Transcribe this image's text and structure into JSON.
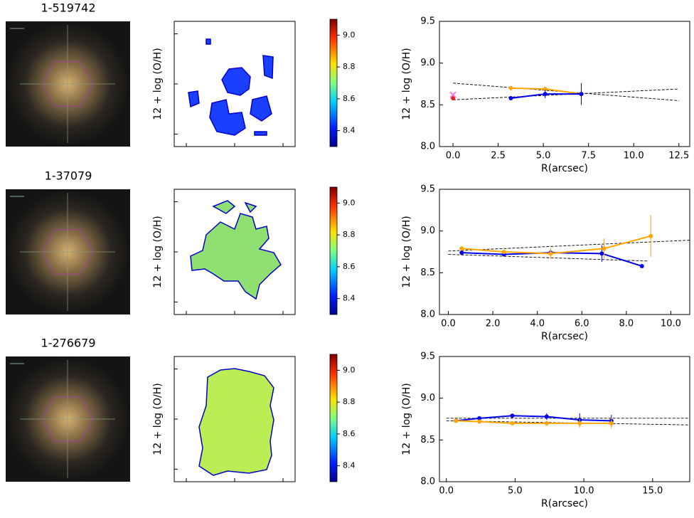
{
  "chart_data": [
    {
      "type": "image",
      "title": "1-519742"
    },
    {
      "type": "map",
      "ylabel": "12 + log (O/H)",
      "colorbar_lim": [
        8.3,
        9.1
      ],
      "colorbar_ticks": [
        8.4,
        8.6,
        8.8,
        {
          "value": 9,
          "label": "9.0"
        }
      ]
    },
    {
      "type": "line",
      "ylabel": "12 + log (O/H)",
      "xlabel": "R(arcsec)",
      "xlim": [
        -0.75,
        13.1
      ],
      "ylim": [
        8.0,
        9.5
      ],
      "xticks": [
        {
          "value": 0,
          "label": "0.0"
        },
        2.5,
        {
          "value": 5,
          "label": "5.0"
        },
        7.5,
        {
          "value": 10,
          "label": "10.0"
        },
        12.5
      ],
      "yticks": [
        {
          "value": 8,
          "label": "8.0"
        },
        8.5,
        {
          "value": 9,
          "label": "9.0"
        },
        9.5
      ],
      "series": [
        {
          "color": "#000000",
          "style": "dashed",
          "x": [
            0,
            12.5
          ],
          "values": [
            8.56,
            8.69
          ]
        },
        {
          "color": "#000000",
          "style": "dashed",
          "x": [
            0,
            12.5
          ],
          "values": [
            8.76,
            8.55
          ]
        },
        {
          "color": "#ffa500",
          "style": "solid",
          "x": [
            3.2,
            5.1,
            7.1
          ],
          "values": [
            8.7,
            8.69,
            8.63
          ],
          "errors": [
            0.01,
            0.02,
            0.03
          ]
        },
        {
          "color": "#0000ee",
          "style": "solid",
          "x": [
            3.2,
            5.1,
            7.1
          ],
          "values": [
            8.58,
            8.63,
            8.63
          ],
          "errors": [
            0.02,
            0.05,
            0.13
          ]
        },
        {
          "color": "#e41a1c",
          "style": "none",
          "x": [
            0
          ],
          "values": [
            8.58
          ]
        },
        {
          "color": "#ff77dd",
          "style": "cross",
          "x": [
            0
          ],
          "values": [
            8.62
          ]
        }
      ]
    },
    {
      "type": "image",
      "title": "1-37079"
    },
    {
      "type": "map",
      "ylabel": "12 + log (O/H)",
      "colorbar_lim": [
        8.3,
        9.1
      ],
      "colorbar_ticks": [
        8.4,
        8.6,
        8.8,
        {
          "value": 9,
          "label": "9.0"
        }
      ]
    },
    {
      "type": "line",
      "ylabel": "12 + log (O/H)",
      "xlabel": "R(arcsec)",
      "xlim": [
        -0.4,
        10.85
      ],
      "ylim": [
        8.0,
        9.5
      ],
      "xticks": [
        {
          "value": 0,
          "label": "0.0"
        },
        {
          "value": 2,
          "label": "2.0"
        },
        {
          "value": 4,
          "label": "4.0"
        },
        {
          "value": 6,
          "label": "6.0"
        },
        {
          "value": 8,
          "label": "8.0"
        },
        {
          "value": 10,
          "label": "10.0"
        }
      ],
      "yticks": [
        {
          "value": 8,
          "label": "8.0"
        },
        8.5,
        {
          "value": 9,
          "label": "9.0"
        },
        9.5
      ],
      "series": [
        {
          "color": "#000000",
          "style": "dashed",
          "x": [
            0,
            10.85
          ],
          "values": [
            8.76,
            8.89
          ]
        },
        {
          "color": "#000000",
          "style": "dashed",
          "x": [
            0,
            9
          ],
          "values": [
            8.72,
            8.64
          ]
        },
        {
          "color": "#0000ee",
          "style": "solid",
          "x": [
            0.6,
            2.5,
            4.6,
            6.9,
            8.7
          ],
          "values": [
            8.74,
            8.72,
            8.74,
            8.73,
            8.58
          ],
          "errors": [
            0.01,
            0.02,
            0.05,
            0.1,
            0.02
          ]
        },
        {
          "color": "#ffa500",
          "style": "solid",
          "x": [
            0.6,
            2.5,
            4.6,
            7.0,
            9.1
          ],
          "values": [
            8.79,
            8.75,
            8.73,
            8.79,
            8.94
          ],
          "errors": [
            0.01,
            0.02,
            0.06,
            0.12,
            0.25
          ]
        }
      ]
    },
    {
      "type": "image",
      "title": "1-276679"
    },
    {
      "type": "map",
      "ylabel": "12 + log (O/H)",
      "colorbar_lim": [
        8.3,
        9.1
      ],
      "colorbar_ticks": [
        8.4,
        8.6,
        8.8,
        {
          "value": 9,
          "label": "9.0"
        }
      ]
    },
    {
      "type": "line",
      "ylabel": "12 + log (O/H)",
      "xlabel": "R(arcsec)",
      "xlim": [
        -0.5,
        17.7
      ],
      "ylim": [
        8.0,
        9.5
      ],
      "xticks": [
        {
          "value": 0,
          "label": "0.0"
        },
        {
          "value": 5,
          "label": "5.0"
        },
        {
          "value": 10,
          "label": "10.0"
        },
        {
          "value": 15,
          "label": "15.0"
        }
      ],
      "yticks": [
        {
          "value": 8,
          "label": "8.0"
        },
        8.5,
        {
          "value": 9,
          "label": "9.0"
        },
        9.5
      ],
      "series": [
        {
          "color": "#000000",
          "style": "dashed",
          "x": [
            0,
            17.7
          ],
          "values": [
            8.76,
            8.76
          ]
        },
        {
          "color": "#000000",
          "style": "dashed",
          "x": [
            0,
            17.7
          ],
          "values": [
            8.73,
            8.68
          ]
        },
        {
          "color": "#0000ee",
          "style": "solid",
          "x": [
            0.7,
            2.4,
            4.8,
            7.3,
            9.7,
            12.0
          ],
          "values": [
            8.73,
            8.76,
            8.79,
            8.78,
            8.74,
            8.73
          ],
          "errors": [
            0.01,
            0.02,
            0.02,
            0.04,
            0.08,
            0.07
          ]
        },
        {
          "color": "#ffa500",
          "style": "solid",
          "x": [
            0.7,
            2.4,
            4.8,
            7.3,
            9.7,
            12.0
          ],
          "values": [
            8.73,
            8.72,
            8.7,
            8.7,
            8.7,
            8.7
          ],
          "errors": [
            0.01,
            0.01,
            0.02,
            0.03,
            0.05,
            0.06
          ]
        }
      ]
    }
  ]
}
